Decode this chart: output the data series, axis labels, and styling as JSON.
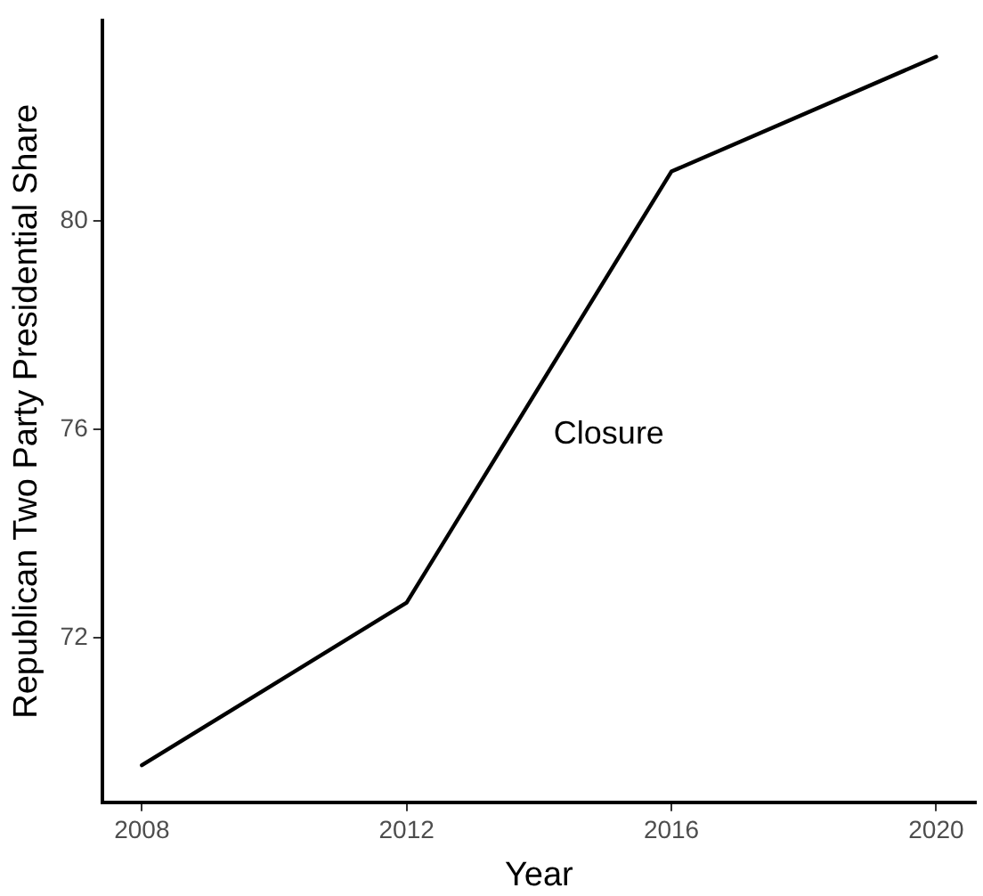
{
  "chart_data": {
    "type": "line",
    "xlabel": "Year",
    "ylabel": "Republican Two Party Presidential Share",
    "x": [
      2008,
      2012,
      2016,
      2020
    ],
    "series": [
      {
        "color": "#000000",
        "values": [
          69.56,
          72.68,
          80.95,
          83.15
        ]
      }
    ],
    "xlim": [
      2007.4,
      2020.6
    ],
    "xticks": [
      2008,
      2012,
      2016,
      2020
    ],
    "ylim": [
      68.85,
      83.85
    ],
    "yticks": [
      72,
      76,
      80
    ],
    "annotations": [
      "Closure"
    ],
    "grid": false,
    "legend": false,
    "marker": "none",
    "line_style": "solid"
  }
}
